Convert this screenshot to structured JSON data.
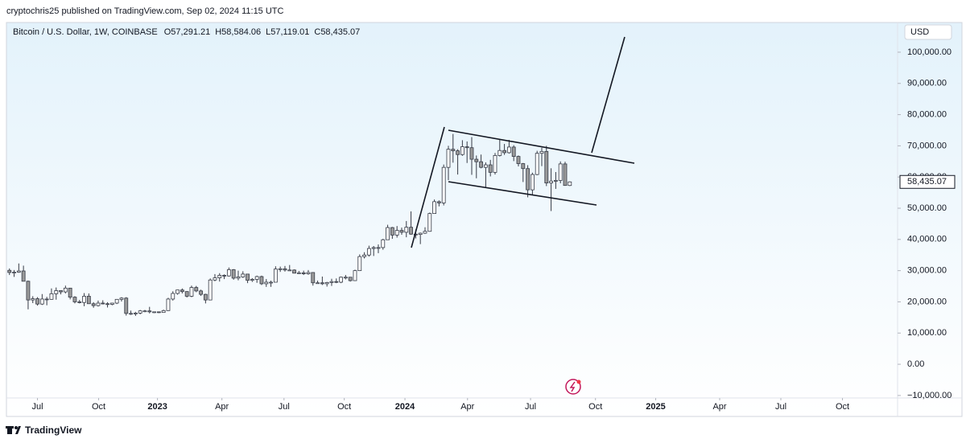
{
  "header": {
    "publisher": "cryptochris25 published on TradingView.com, Sep 02, 2024 11:15 UTC",
    "brand": "TradingView"
  },
  "chart_data": {
    "type": "candlestick",
    "title": "Bitcoin / U.S. Dollar, 1W, COINBASE",
    "last_labels": [
      "O57,291.21",
      "H58,584.06",
      "L57,119.01",
      "C58,435.07"
    ],
    "currency": "USD",
    "last_price_label": "58,435.07",
    "up_color": "#ffffff",
    "down_color": "#9a9a9a",
    "wick_color": "#363a45",
    "ylim": [
      -10800,
      109000
    ],
    "yticks": [
      {
        "value": -10000,
        "label": "−10,000.00"
      },
      {
        "value": 0,
        "label": "0.00"
      },
      {
        "value": 10000,
        "label": "10,000.00"
      },
      {
        "value": 20000,
        "label": "20,000.00"
      },
      {
        "value": 30000,
        "label": "30,000.00"
      },
      {
        "value": 40000,
        "label": "40,000.00"
      },
      {
        "value": 50000,
        "label": "50,000.00"
      },
      {
        "value": 60000,
        "label": "60,000.00"
      },
      {
        "value": 70000,
        "label": "70,000.00"
      },
      {
        "value": 80000,
        "label": "80,000.00"
      },
      {
        "value": 90000,
        "label": "90,000.00"
      },
      {
        "value": 100000,
        "label": "100,000.00"
      }
    ],
    "xlim": [
      -0.3,
      190.2
    ],
    "xticks": [
      {
        "value": 6.0,
        "label": "Jul"
      },
      {
        "value": 19.1,
        "label": "Oct"
      },
      {
        "value": 31.7,
        "label": "2023"
      },
      {
        "value": 45.5,
        "label": "Apr"
      },
      {
        "value": 58.8,
        "label": "Jul"
      },
      {
        "value": 71.7,
        "label": "Oct"
      },
      {
        "value": 84.7,
        "label": "2024"
      },
      {
        "value": 98.1,
        "label": "Apr"
      },
      {
        "value": 111.6,
        "label": "Jul"
      },
      {
        "value": 125.5,
        "label": "Oct"
      },
      {
        "value": 138.4,
        "label": "2025"
      },
      {
        "value": 152.1,
        "label": "Apr"
      },
      {
        "value": 165.2,
        "label": "Jul"
      },
      {
        "value": 178.4,
        "label": "Oct"
      }
    ],
    "ohlc": [
      [
        30100,
        30700,
        28600,
        29400
      ],
      [
        29400,
        30200,
        28000,
        29500
      ],
      [
        29500,
        32300,
        29300,
        29900
      ],
      [
        29900,
        31600,
        26600,
        26600
      ],
      [
        26600,
        26800,
        17600,
        20600
      ],
      [
        20600,
        21800,
        19600,
        21000
      ],
      [
        21000,
        21500,
        18800,
        19300
      ],
      [
        19300,
        22500,
        19000,
        20900
      ],
      [
        20900,
        21600,
        18900,
        20800
      ],
      [
        20800,
        24300,
        20700,
        22600
      ],
      [
        22600,
        24600,
        20700,
        23600
      ],
      [
        23600,
        23600,
        22400,
        23200
      ],
      [
        23200,
        25200,
        22700,
        24400
      ],
      [
        24400,
        24400,
        20800,
        21500
      ],
      [
        21500,
        21800,
        19500,
        20000
      ],
      [
        20000,
        20600,
        19500,
        19800
      ],
      [
        19800,
        22800,
        18600,
        21800
      ],
      [
        21800,
        22700,
        19400,
        19400
      ],
      [
        19400,
        19900,
        18100,
        18800
      ],
      [
        18800,
        20400,
        18500,
        19600
      ],
      [
        19600,
        20500,
        19200,
        19400
      ],
      [
        19400,
        19900,
        18200,
        19200
      ],
      [
        19200,
        19700,
        18900,
        19600
      ],
      [
        19600,
        20900,
        19300,
        20800
      ],
      [
        20800,
        21500,
        20100,
        21200
      ],
      [
        21200,
        21500,
        15600,
        16300
      ],
      [
        16300,
        17200,
        15800,
        16300
      ],
      [
        16300,
        16800,
        15500,
        16400
      ],
      [
        16400,
        17400,
        16000,
        17100
      ],
      [
        17100,
        17400,
        16700,
        17100
      ],
      [
        17100,
        18400,
        16300,
        16800
      ],
      [
        16800,
        16900,
        16400,
        16800
      ],
      [
        16800,
        16900,
        16400,
        16600
      ],
      [
        16600,
        17500,
        16500,
        17200
      ],
      [
        17200,
        21300,
        17100,
        20900
      ],
      [
        20900,
        23400,
        20400,
        22700
      ],
      [
        22700,
        23900,
        22300,
        23800
      ],
      [
        23800,
        24300,
        22700,
        23300
      ],
      [
        23300,
        23400,
        21400,
        21800
      ],
      [
        21800,
        25200,
        21500,
        24600
      ],
      [
        24600,
        25100,
        23100,
        23500
      ],
      [
        23500,
        23900,
        21900,
        22400
      ],
      [
        22400,
        22600,
        19500,
        20600
      ],
      [
        20600,
        27500,
        20500,
        27000
      ],
      [
        27000,
        28900,
        26600,
        27700
      ],
      [
        27700,
        29200,
        26500,
        28500
      ],
      [
        28500,
        28800,
        27300,
        28300
      ],
      [
        28300,
        31000,
        28100,
        30300
      ],
      [
        30300,
        30500,
        27100,
        27600
      ],
      [
        27600,
        30000,
        26900,
        28000
      ],
      [
        28000,
        29800,
        27700,
        28900
      ],
      [
        28900,
        29000,
        26000,
        26900
      ],
      [
        26900,
        27600,
        26400,
        27200
      ],
      [
        27200,
        28400,
        26100,
        28100
      ],
      [
        28100,
        28400,
        25400,
        25800
      ],
      [
        25800,
        27300,
        24800,
        26300
      ],
      [
        26300,
        26800,
        24800,
        26300
      ],
      [
        26300,
        31400,
        26300,
        30500
      ],
      [
        30500,
        31300,
        29600,
        30600
      ],
      [
        30600,
        31500,
        29700,
        30200
      ],
      [
        30200,
        31800,
        29900,
        30200
      ],
      [
        30200,
        30400,
        29100,
        29200
      ],
      [
        29200,
        29900,
        29000,
        29300
      ],
      [
        29300,
        30000,
        28600,
        29000
      ],
      [
        29000,
        30200,
        28700,
        29400
      ],
      [
        29400,
        29500,
        25200,
        26100
      ],
      [
        26100,
        26800,
        25800,
        26100
      ],
      [
        26100,
        28100,
        25400,
        25800
      ],
      [
        25800,
        26400,
        24900,
        26200
      ],
      [
        26200,
        27400,
        25100,
        26500
      ],
      [
        26500,
        27500,
        26000,
        26300
      ],
      [
        26300,
        28100,
        26000,
        27900
      ],
      [
        27900,
        28600,
        27200,
        27900
      ],
      [
        27900,
        27900,
        26500,
        26800
      ],
      [
        26800,
        30300,
        26700,
        30000
      ],
      [
        30000,
        35200,
        29900,
        34500
      ],
      [
        34500,
        35900,
        33900,
        35000
      ],
      [
        35000,
        38000,
        34500,
        37100
      ],
      [
        37100,
        37900,
        34700,
        37400
      ],
      [
        37400,
        38400,
        35600,
        37400
      ],
      [
        37400,
        40200,
        36700,
        39900
      ],
      [
        39900,
        44700,
        39900,
        43800
      ],
      [
        43800,
        44000,
        40200,
        41400
      ],
      [
        41400,
        44300,
        40600,
        42900
      ],
      [
        42900,
        43800,
        41500,
        42300
      ],
      [
        42300,
        45900,
        40700,
        43900
      ],
      [
        43900,
        49000,
        41500,
        41700
      ],
      [
        41700,
        43200,
        40300,
        41600
      ],
      [
        41600,
        42200,
        38500,
        42000
      ],
      [
        42000,
        43900,
        41800,
        42600
      ],
      [
        42600,
        48600,
        42500,
        48300
      ],
      [
        48300,
        52800,
        48200,
        52100
      ],
      [
        52100,
        52500,
        50600,
        51700
      ],
      [
        51700,
        64000,
        50900,
        63100
      ],
      [
        63100,
        70000,
        59000,
        68900
      ],
      [
        68900,
        73800,
        64600,
        68400
      ],
      [
        68400,
        68900,
        60800,
        67200
      ],
      [
        67200,
        71800,
        66800,
        69700
      ],
      [
        69700,
        71400,
        64500,
        69400
      ],
      [
        69400,
        72800,
        60700,
        65700
      ],
      [
        65700,
        66900,
        59600,
        64900
      ],
      [
        64900,
        67200,
        62800,
        63100
      ],
      [
        63100,
        64700,
        56600,
        63900
      ],
      [
        63900,
        65500,
        60200,
        61500
      ],
      [
        61500,
        67700,
        60800,
        66900
      ],
      [
        66900,
        71900,
        66600,
        68500
      ],
      [
        68500,
        70600,
        67100,
        67800
      ],
      [
        67800,
        71900,
        67500,
        69600
      ],
      [
        69600,
        70200,
        65100,
        66600
      ],
      [
        66600,
        66900,
        63400,
        64300
      ],
      [
        64300,
        64500,
        58400,
        62700
      ],
      [
        62700,
        63800,
        53500,
        55900
      ],
      [
        55900,
        61400,
        54300,
        60800
      ],
      [
        60800,
        68400,
        60600,
        67600
      ],
      [
        67600,
        69400,
        63500,
        68200
      ],
      [
        68200,
        70000,
        57100,
        58100
      ],
      [
        58100,
        62800,
        49100,
        58700
      ],
      [
        58700,
        61600,
        56200,
        58900
      ],
      [
        58900,
        65000,
        58000,
        64200
      ],
      [
        64200,
        64900,
        57200,
        57300
      ],
      [
        57291.21,
        58584.06,
        57119.01,
        58435.07
      ]
    ]
  }
}
